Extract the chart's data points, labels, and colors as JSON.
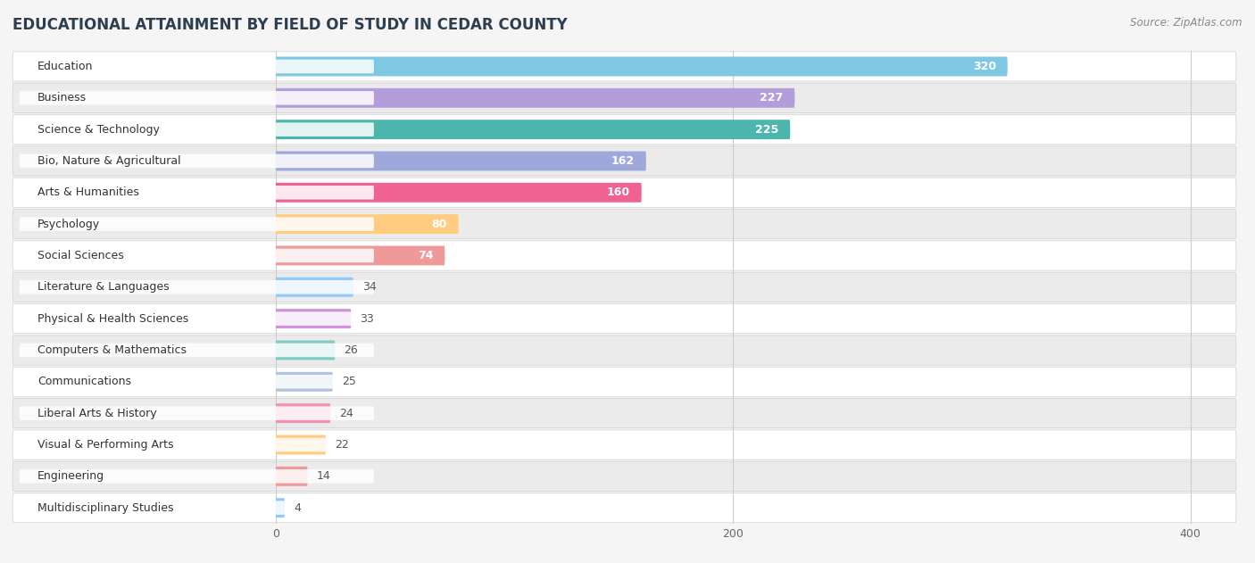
{
  "title": "EDUCATIONAL ATTAINMENT BY FIELD OF STUDY IN CEDAR COUNTY",
  "source": "Source: ZipAtlas.com",
  "categories": [
    "Education",
    "Business",
    "Science & Technology",
    "Bio, Nature & Agricultural",
    "Arts & Humanities",
    "Psychology",
    "Social Sciences",
    "Literature & Languages",
    "Physical & Health Sciences",
    "Computers & Mathematics",
    "Communications",
    "Liberal Arts & History",
    "Visual & Performing Arts",
    "Engineering",
    "Multidisciplinary Studies"
  ],
  "values": [
    320,
    227,
    225,
    162,
    160,
    80,
    74,
    34,
    33,
    26,
    25,
    24,
    22,
    14,
    4
  ],
  "colors": [
    "#7ec8e3",
    "#b39ddb",
    "#4db6ac",
    "#9fa8da",
    "#f06292",
    "#ffcc80",
    "#ef9a9a",
    "#90caf9",
    "#ce93d8",
    "#80cbc4",
    "#b0c4de",
    "#f48fb1",
    "#ffcc80",
    "#ef9a9a",
    "#90caf9"
  ],
  "xlim_left": -115,
  "xlim_right": 420,
  "xticks": [
    0,
    200,
    400
  ],
  "bar_height": 0.62,
  "value_color_inside": "#ffffff",
  "value_color_outside": "#555555",
  "background_color": "#f5f5f5",
  "row_bg_even": "#ffffff",
  "row_bg_odd": "#ebebeb",
  "title_fontsize": 12,
  "source_fontsize": 8.5,
  "label_fontsize": 9,
  "value_fontsize": 9,
  "tick_fontsize": 9
}
